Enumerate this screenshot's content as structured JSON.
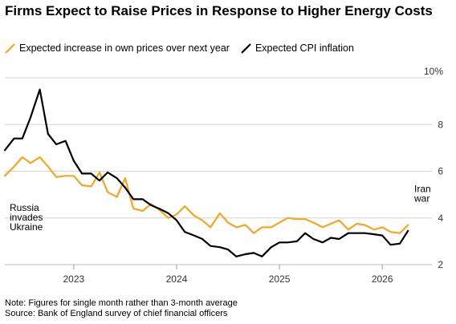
{
  "title": "Firms Expect to Raise Prices in Response to Higher Energy Costs",
  "legend": [
    {
      "label": "Expected increase in own prices over next year",
      "color": "#f5a623"
    },
    {
      "label": "Expected CPI inflation",
      "color": "#000000"
    }
  ],
  "notes": {
    "note": "Note: Figures for single month rather than 3-month average",
    "source": "Source: Bank of England survey of chief financial officers"
  },
  "chart_data": {
    "type": "line",
    "title": "Firms Expect to Raise Prices in Response to Higher Energy Costs",
    "xlabel": "",
    "ylabel": "",
    "y_unit_label": "10%",
    "ylim": [
      2,
      10
    ],
    "yticks": [
      2,
      4,
      6,
      8,
      10
    ],
    "ytick_labels": [
      "2",
      "4",
      "6",
      "8",
      "10%"
    ],
    "xlim": [
      2022.33,
      2026.42
    ],
    "xticks": [
      2023,
      2024,
      2025,
      2026
    ],
    "xtick_labels": [
      "2023",
      "2024",
      "2025",
      "2026"
    ],
    "grid": true,
    "legend_position": "top-left",
    "annotations": [
      {
        "text": "Russia invades Ukraine",
        "lines": [
          "Russia",
          "invades",
          "Ukraine"
        ],
        "x": 2022.4,
        "y": 4.3
      },
      {
        "text": "Iran war",
        "lines": [
          "Iran",
          "war"
        ],
        "x": 2026.25,
        "y": 5.1
      }
    ],
    "series": [
      {
        "name": "Expected increase in own prices over next year",
        "color": "#f5a623",
        "points": [
          [
            2022.33,
            5.8
          ],
          [
            2022.42,
            6.2
          ],
          [
            2022.5,
            6.6
          ],
          [
            2022.58,
            6.35
          ],
          [
            2022.67,
            6.6
          ],
          [
            2022.75,
            6.2
          ],
          [
            2022.83,
            5.75
          ],
          [
            2022.92,
            5.8
          ],
          [
            2023.0,
            5.8
          ],
          [
            2023.08,
            5.4
          ],
          [
            2023.17,
            5.35
          ],
          [
            2023.25,
            5.95
          ],
          [
            2023.33,
            5.1
          ],
          [
            2023.42,
            4.9
          ],
          [
            2023.5,
            5.7
          ],
          [
            2023.58,
            4.4
          ],
          [
            2023.67,
            4.3
          ],
          [
            2023.75,
            4.6
          ],
          [
            2023.83,
            4.35
          ],
          [
            2023.92,
            4.0
          ],
          [
            2024.0,
            4.15
          ],
          [
            2024.08,
            4.5
          ],
          [
            2024.17,
            4.1
          ],
          [
            2024.25,
            3.9
          ],
          [
            2024.33,
            3.6
          ],
          [
            2024.42,
            4.2
          ],
          [
            2024.5,
            3.8
          ],
          [
            2024.58,
            3.6
          ],
          [
            2024.67,
            3.7
          ],
          [
            2024.75,
            3.35
          ],
          [
            2024.83,
            3.6
          ],
          [
            2024.92,
            3.6
          ],
          [
            2025.0,
            3.8
          ],
          [
            2025.08,
            4.0
          ],
          [
            2025.17,
            3.95
          ],
          [
            2025.25,
            3.95
          ],
          [
            2025.33,
            3.8
          ],
          [
            2025.42,
            3.6
          ],
          [
            2025.5,
            3.75
          ],
          [
            2025.58,
            3.9
          ],
          [
            2025.67,
            3.5
          ],
          [
            2025.75,
            3.75
          ],
          [
            2025.83,
            3.7
          ],
          [
            2025.92,
            3.5
          ],
          [
            2026.0,
            3.6
          ],
          [
            2026.08,
            3.4
          ],
          [
            2026.17,
            3.35
          ],
          [
            2026.25,
            3.7
          ]
        ]
      },
      {
        "name": "Expected CPI inflation",
        "color": "#000000",
        "points": [
          [
            2022.33,
            6.9
          ],
          [
            2022.42,
            7.4
          ],
          [
            2022.5,
            7.4
          ],
          [
            2022.58,
            8.3
          ],
          [
            2022.67,
            9.5
          ],
          [
            2022.75,
            7.6
          ],
          [
            2022.83,
            7.15
          ],
          [
            2022.92,
            7.3
          ],
          [
            2023.0,
            6.45
          ],
          [
            2023.08,
            5.9
          ],
          [
            2023.17,
            5.9
          ],
          [
            2023.25,
            5.6
          ],
          [
            2023.33,
            5.95
          ],
          [
            2023.42,
            5.7
          ],
          [
            2023.5,
            5.3
          ],
          [
            2023.58,
            4.8
          ],
          [
            2023.67,
            4.8
          ],
          [
            2023.75,
            4.55
          ],
          [
            2023.83,
            4.4
          ],
          [
            2023.92,
            4.2
          ],
          [
            2024.0,
            3.9
          ],
          [
            2024.08,
            3.4
          ],
          [
            2024.17,
            3.25
          ],
          [
            2024.25,
            3.1
          ],
          [
            2024.33,
            2.8
          ],
          [
            2024.42,
            2.75
          ],
          [
            2024.5,
            2.65
          ],
          [
            2024.58,
            2.35
          ],
          [
            2024.67,
            2.45
          ],
          [
            2024.75,
            2.5
          ],
          [
            2024.83,
            2.35
          ],
          [
            2024.92,
            2.75
          ],
          [
            2025.0,
            2.95
          ],
          [
            2025.08,
            2.95
          ],
          [
            2025.17,
            3.0
          ],
          [
            2025.25,
            3.35
          ],
          [
            2025.33,
            3.1
          ],
          [
            2025.42,
            2.95
          ],
          [
            2025.5,
            3.15
          ],
          [
            2025.58,
            3.1
          ],
          [
            2025.67,
            3.35
          ],
          [
            2025.75,
            3.35
          ],
          [
            2025.83,
            3.35
          ],
          [
            2025.92,
            3.3
          ],
          [
            2026.0,
            3.25
          ],
          [
            2026.08,
            2.85
          ],
          [
            2026.17,
            2.9
          ],
          [
            2026.25,
            3.45
          ]
        ]
      }
    ]
  }
}
